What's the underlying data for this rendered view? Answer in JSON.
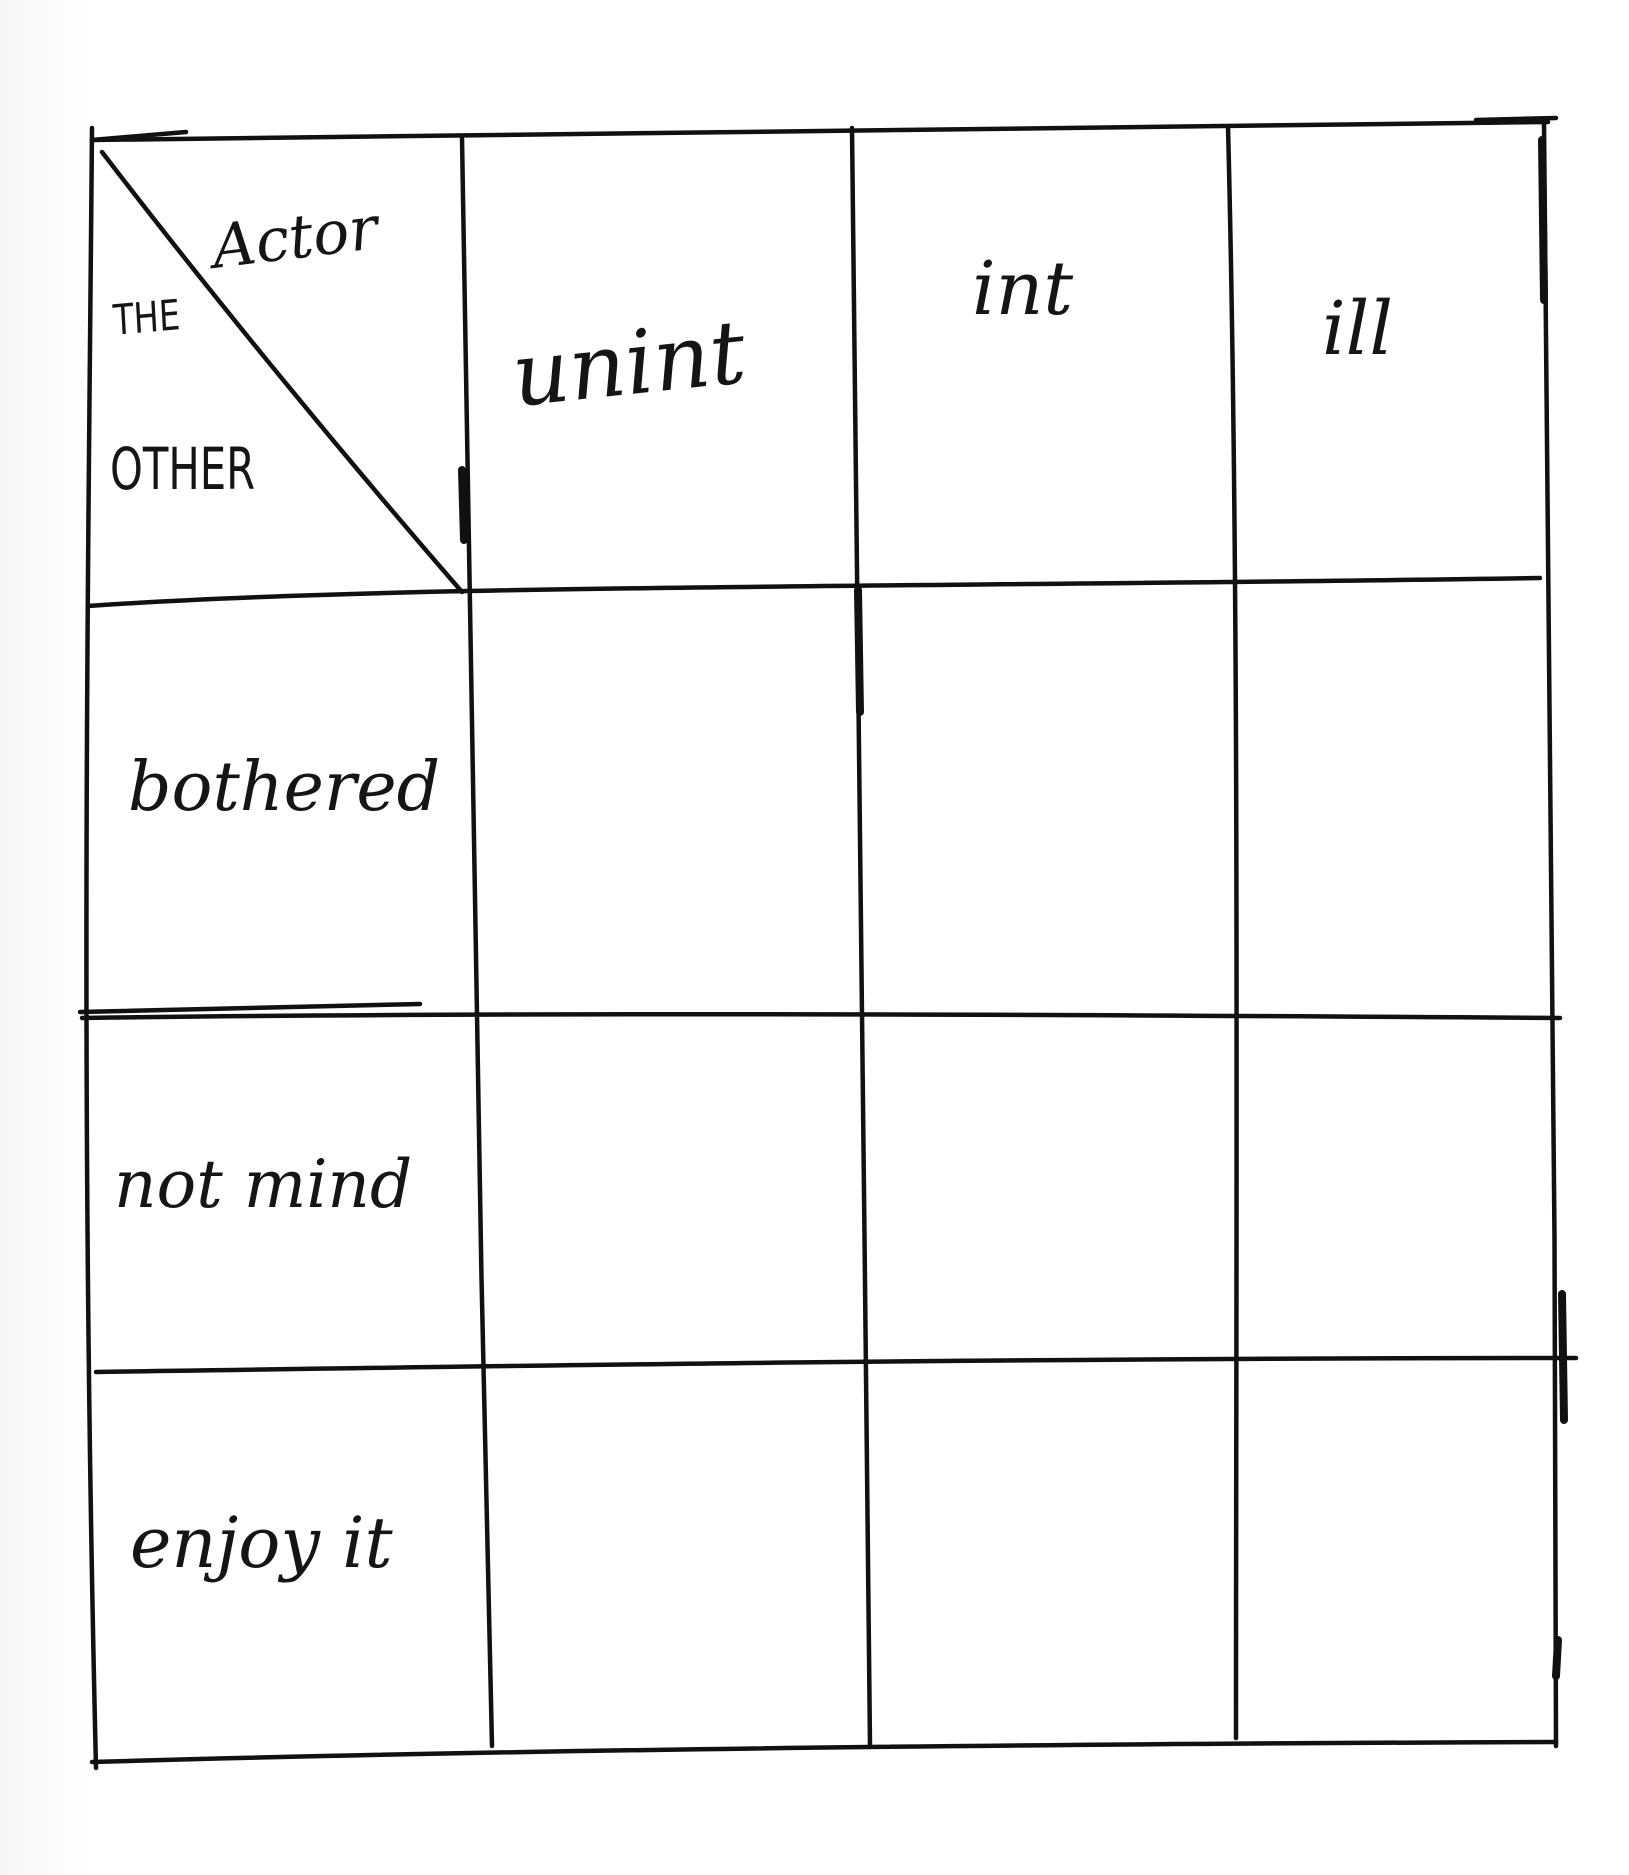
{
  "table": {
    "corner": {
      "top_label": "Actor",
      "bottom_label_line1": "THE",
      "bottom_label_line2": "OTHER"
    },
    "column_headers": [
      "unint",
      "int",
      "ill"
    ],
    "row_headers": [
      "bothered",
      "not mind",
      "enjoy it"
    ],
    "cells": [
      [
        "",
        "",
        ""
      ],
      [
        "",
        "",
        ""
      ],
      [
        "",
        "",
        ""
      ]
    ]
  }
}
